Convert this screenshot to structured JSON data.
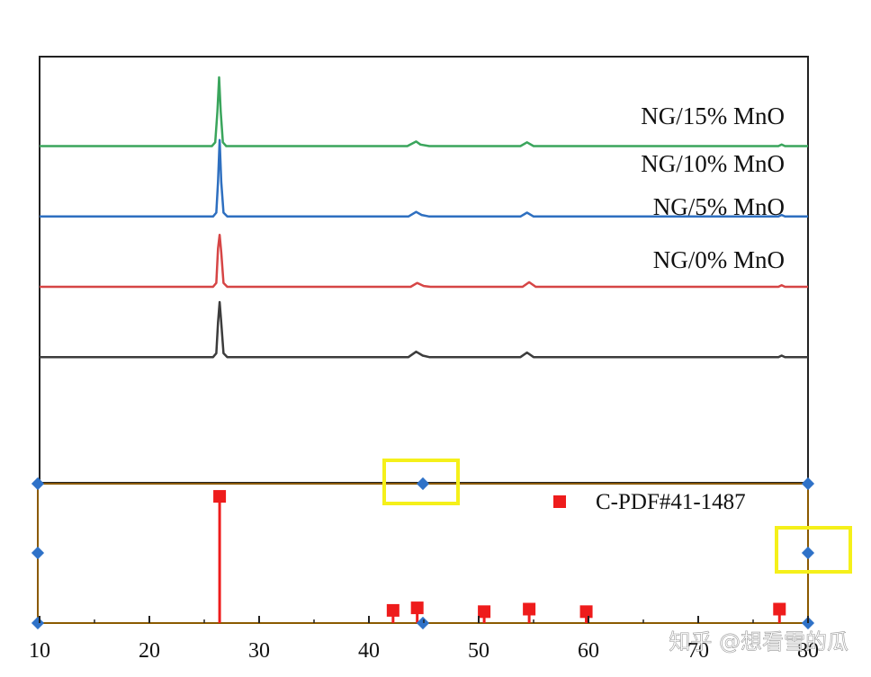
{
  "chart_data": {
    "type": "line",
    "xlabel": "",
    "ylabel": "",
    "xlim": [
      10,
      80
    ],
    "x_ticks": [
      10,
      20,
      30,
      40,
      50,
      60,
      70,
      80
    ],
    "x_tick_labels": [
      "10",
      "20",
      "30",
      "40",
      "50",
      "60",
      "70",
      "80"
    ],
    "grid": false,
    "series": [
      {
        "name": "NG/15% MnO",
        "color": "#3aa55c",
        "baseline": 0.79,
        "points": [
          [
            10,
            0
          ],
          [
            25.7,
            0
          ],
          [
            26.0,
            0.05
          ],
          [
            26.2,
            0.45
          ],
          [
            26.35,
            0.9
          ],
          [
            26.5,
            0.45
          ],
          [
            26.7,
            0.05
          ],
          [
            27.0,
            0
          ],
          [
            43.5,
            0
          ],
          [
            44.3,
            0.06
          ],
          [
            44.7,
            0.02
          ],
          [
            45.5,
            0
          ],
          [
            53.8,
            0
          ],
          [
            54.4,
            0.05
          ],
          [
            55.0,
            0
          ],
          [
            77.3,
            0
          ],
          [
            77.6,
            0.02
          ],
          [
            77.9,
            0
          ],
          [
            80,
            0
          ]
        ]
      },
      {
        "name": "NG/10% MnO",
        "color": "#2e6fc0",
        "baseline": 0.625,
        "points": [
          [
            10,
            0
          ],
          [
            25.8,
            0
          ],
          [
            26.1,
            0.05
          ],
          [
            26.25,
            0.45
          ],
          [
            26.4,
            1.0
          ],
          [
            26.55,
            0.45
          ],
          [
            26.75,
            0.05
          ],
          [
            27.1,
            0
          ],
          [
            43.6,
            0
          ],
          [
            44.3,
            0.06
          ],
          [
            44.8,
            0.02
          ],
          [
            45.5,
            0
          ],
          [
            53.8,
            0
          ],
          [
            54.4,
            0.05
          ],
          [
            55.0,
            0
          ],
          [
            77.3,
            0
          ],
          [
            77.6,
            0.02
          ],
          [
            77.9,
            0
          ],
          [
            80,
            0
          ]
        ]
      },
      {
        "name": "NG/5% MnO",
        "color": "#d64545",
        "baseline": 0.46,
        "points": [
          [
            10,
            0
          ],
          [
            25.8,
            0
          ],
          [
            26.1,
            0.05
          ],
          [
            26.25,
            0.5
          ],
          [
            26.4,
            0.68
          ],
          [
            26.55,
            0.45
          ],
          [
            26.75,
            0.05
          ],
          [
            27.1,
            0
          ],
          [
            43.8,
            0
          ],
          [
            44.4,
            0.05
          ],
          [
            45.0,
            0.01
          ],
          [
            45.6,
            0
          ],
          [
            54.0,
            0
          ],
          [
            54.6,
            0.06
          ],
          [
            55.2,
            0
          ],
          [
            77.3,
            0
          ],
          [
            77.6,
            0.02
          ],
          [
            77.9,
            0
          ],
          [
            80,
            0
          ]
        ]
      },
      {
        "name": "NG/0% MnO",
        "color": "#3c3c3c",
        "baseline": 0.295,
        "points": [
          [
            10,
            0
          ],
          [
            25.8,
            0
          ],
          [
            26.1,
            0.05
          ],
          [
            26.25,
            0.45
          ],
          [
            26.4,
            0.72
          ],
          [
            26.55,
            0.45
          ],
          [
            26.75,
            0.05
          ],
          [
            27.1,
            0
          ],
          [
            43.6,
            0
          ],
          [
            44.3,
            0.07
          ],
          [
            44.9,
            0.02
          ],
          [
            45.5,
            0
          ],
          [
            53.8,
            0
          ],
          [
            54.4,
            0.06
          ],
          [
            55.0,
            0
          ],
          [
            77.3,
            0
          ],
          [
            77.6,
            0.02
          ],
          [
            77.9,
            0
          ],
          [
            80,
            0
          ]
        ]
      }
    ],
    "reference": {
      "name": "C-PDF#41-1487",
      "color": "#ee1c1c",
      "x": [
        26.4,
        42.2,
        44.4,
        50.5,
        54.6,
        59.8,
        77.4
      ],
      "y": [
        100,
        10,
        12,
        9,
        11,
        9,
        11
      ],
      "ylim": [
        0,
        110
      ]
    },
    "legend_position": "top-right"
  },
  "colors": {
    "selection_box": "#f5f01a",
    "handle": "#2f72c8",
    "bottom_panel_border": "#8b5a00"
  },
  "watermark": "知乎 @想看雪的瓜"
}
